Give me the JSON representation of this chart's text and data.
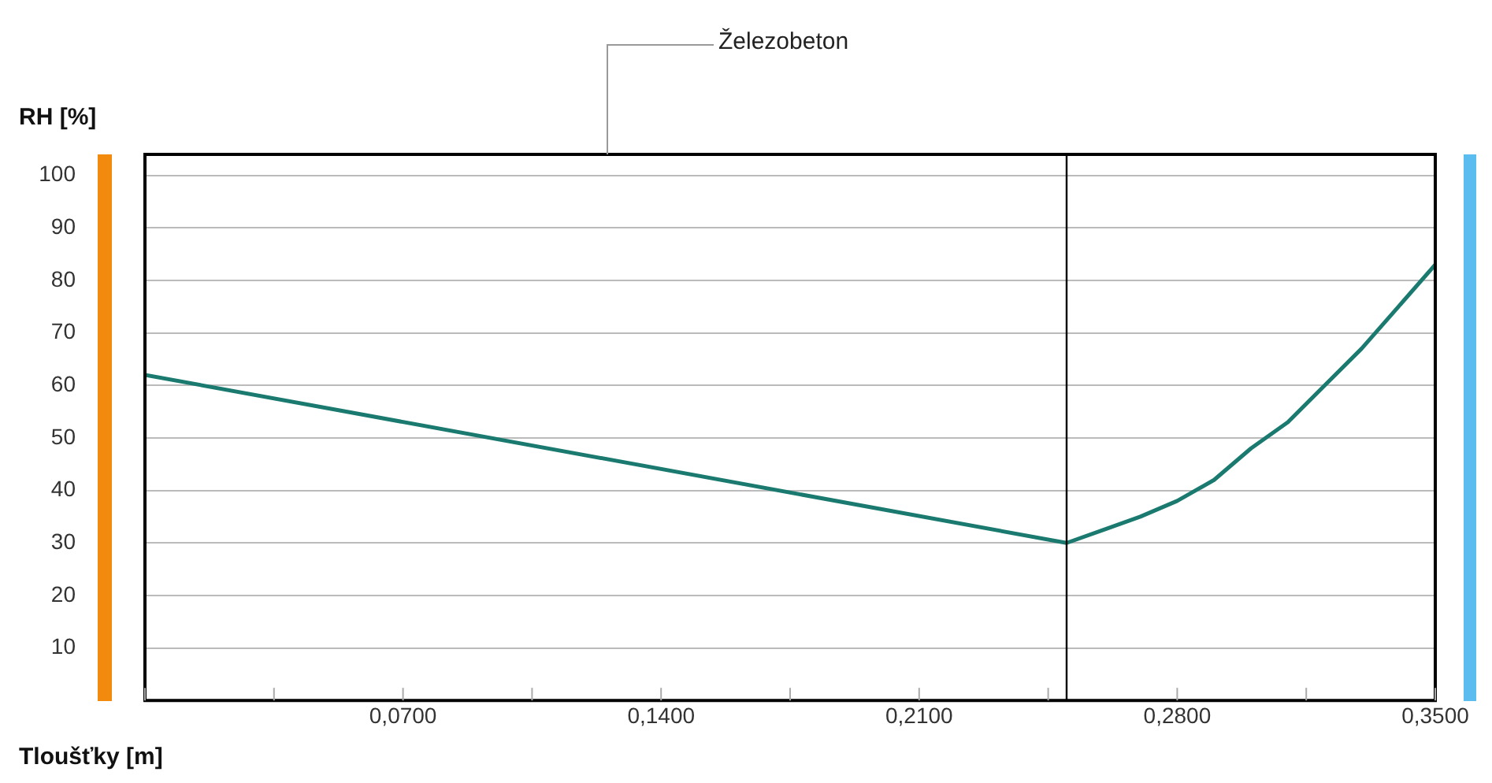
{
  "chart_data": {
    "type": "line",
    "xlabel": "Tloušťky [m]",
    "ylabel": "RH [%]",
    "annotations": [
      "Železobeton"
    ],
    "x": [
      0,
      0.25,
      0.26,
      0.27,
      0.28,
      0.29,
      0.3,
      0.31,
      0.32,
      0.33,
      0.34,
      0.35
    ],
    "series": [
      {
        "color": "#1a7a70",
        "values": [
          62,
          30,
          32.5,
          35,
          38,
          42,
          48,
          53,
          60,
          67,
          75,
          83
        ]
      }
    ],
    "xlim": [
      0,
      0.35
    ],
    "xticks": [
      {
        "value": 0,
        "label": null
      },
      {
        "value": 0.035,
        "label": null
      },
      {
        "value": 0.07,
        "label": "0,0700"
      },
      {
        "value": 0.105,
        "label": null
      },
      {
        "value": 0.14,
        "label": "0,1400"
      },
      {
        "value": 0.175,
        "label": null
      },
      {
        "value": 0.21,
        "label": "0,2100"
      },
      {
        "value": 0.245,
        "label": null
      },
      {
        "value": 0.28,
        "label": "0,2800"
      },
      {
        "value": 0.315,
        "label": null
      },
      {
        "value": 0.35,
        "label": "0,3500"
      }
    ],
    "ylim": [
      0,
      104
    ],
    "yticks": [
      {
        "value": 0,
        "label": null
      },
      10,
      20,
      30,
      40,
      50,
      60,
      70,
      80,
      90,
      100
    ],
    "ref_lines": [
      {
        "axis": "x",
        "value": 0.25,
        "color": "#000000"
      }
    ],
    "grid": "y",
    "legend": false,
    "marker": "none",
    "line_style": "solid"
  }
}
